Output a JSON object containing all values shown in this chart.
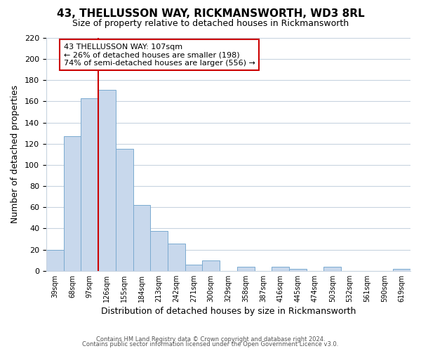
{
  "title": "43, THELLUSSON WAY, RICKMANSWORTH, WD3 8RL",
  "subtitle": "Size of property relative to detached houses in Rickmansworth",
  "xlabel": "Distribution of detached houses by size in Rickmansworth",
  "ylabel": "Number of detached properties",
  "bar_labels": [
    "39sqm",
    "68sqm",
    "97sqm",
    "126sqm",
    "155sqm",
    "184sqm",
    "213sqm",
    "242sqm",
    "271sqm",
    "300sqm",
    "329sqm",
    "358sqm",
    "387sqm",
    "416sqm",
    "445sqm",
    "474sqm",
    "503sqm",
    "532sqm",
    "561sqm",
    "590sqm",
    "619sqm"
  ],
  "bar_heights": [
    20,
    127,
    163,
    171,
    115,
    62,
    38,
    26,
    6,
    10,
    0,
    4,
    0,
    4,
    2,
    0,
    4,
    0,
    0,
    0,
    2
  ],
  "bar_color": "#c8d8ec",
  "bar_edge_color": "#7aaad0",
  "vline_color": "#cc0000",
  "annotation_title": "43 THELLUSSON WAY: 107sqm",
  "annotation_line1": "← 26% of detached houses are smaller (198)",
  "annotation_line2": "74% of semi-detached houses are larger (556) →",
  "annotation_box_color": "#ffffff",
  "annotation_box_edge": "#cc0000",
  "ylim": [
    0,
    220
  ],
  "yticks": [
    0,
    20,
    40,
    60,
    80,
    100,
    120,
    140,
    160,
    180,
    200,
    220
  ],
  "footer1": "Contains HM Land Registry data © Crown copyright and database right 2024.",
  "footer2": "Contains public sector information licensed under the Open Government Licence v3.0.",
  "background_color": "#ffffff",
  "plot_bg_color": "#ffffff",
  "grid_color": "#c8d4e0",
  "title_fontsize": 11,
  "subtitle_fontsize": 9
}
